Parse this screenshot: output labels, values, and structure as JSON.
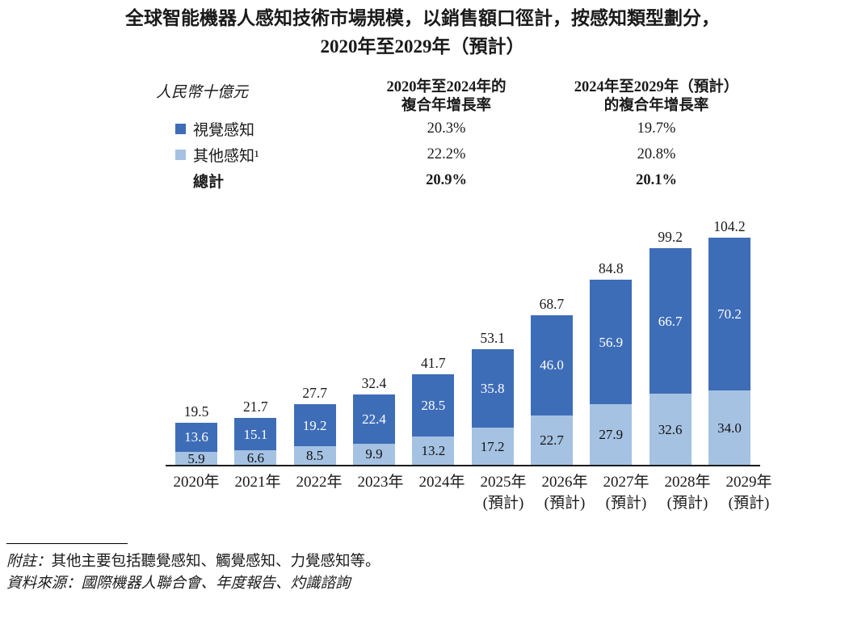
{
  "title": {
    "line1": "全球智能機器人感知技術市場規模，以銷售額口徑計，按感知類型劃分，",
    "line2": "2020年至2029年（預計）"
  },
  "unit_label": "人民幣十億元",
  "cagr_table": {
    "col1_header_line1": "2020年至2024年的",
    "col1_header_line2": "複合年增長率",
    "col2_header_line1": "2024年至2029年（預計）",
    "col2_header_line2": "的複合年增長率",
    "rows": [
      {
        "label": "視覺感知",
        "swatch": "dark",
        "cagr1": "20.3%",
        "cagr2": "19.7%"
      },
      {
        "label": "其他感知¹",
        "swatch": "light",
        "cagr1": "22.2%",
        "cagr2": "20.8%"
      },
      {
        "label": "總計",
        "swatch": "none",
        "cagr1": "20.9%",
        "cagr2": "20.1%"
      }
    ]
  },
  "colors": {
    "dark_blue": "#3e6db8",
    "light_blue": "#a5c2e2"
  },
  "chart_data": {
    "type": "bar",
    "stacked": true,
    "title": "全球智能機器人感知技術市場規模，以銷售額口徑計，按感知類型劃分，2020年至2029年（預計）",
    "ylabel": "人民幣十億元",
    "ylim": [
      0,
      110
    ],
    "grid": false,
    "legend_position": "top-left",
    "categories": [
      "2020年",
      "2021年",
      "2022年",
      "2023年",
      "2024年",
      "2025年",
      "2026年",
      "2027年",
      "2028年",
      "2029年"
    ],
    "forecast_suffix": "(預計)",
    "forecast_from_index": 5,
    "series": [
      {
        "name": "視覺感知",
        "color": "#3e6db8",
        "values": [
          13.6,
          15.1,
          19.2,
          22.4,
          28.5,
          35.8,
          46.0,
          56.9,
          66.7,
          70.2
        ]
      },
      {
        "name": "其他感知",
        "color": "#a5c2e2",
        "values": [
          5.9,
          6.6,
          8.5,
          9.9,
          13.2,
          17.2,
          22.7,
          27.9,
          32.6,
          34.0
        ]
      }
    ],
    "totals": [
      19.5,
      21.7,
      27.7,
      32.4,
      41.7,
      53.1,
      68.7,
      84.8,
      99.2,
      104.2
    ],
    "value_labels": true
  },
  "notes": {
    "note1_label": "附註：",
    "note1_text": "其他主要包括聽覺感知、觸覺感知、力覺感知等。",
    "note2_label": "資料來源：",
    "note2_text": "國際機器人聯合會、年度報告、灼識諮詢"
  }
}
